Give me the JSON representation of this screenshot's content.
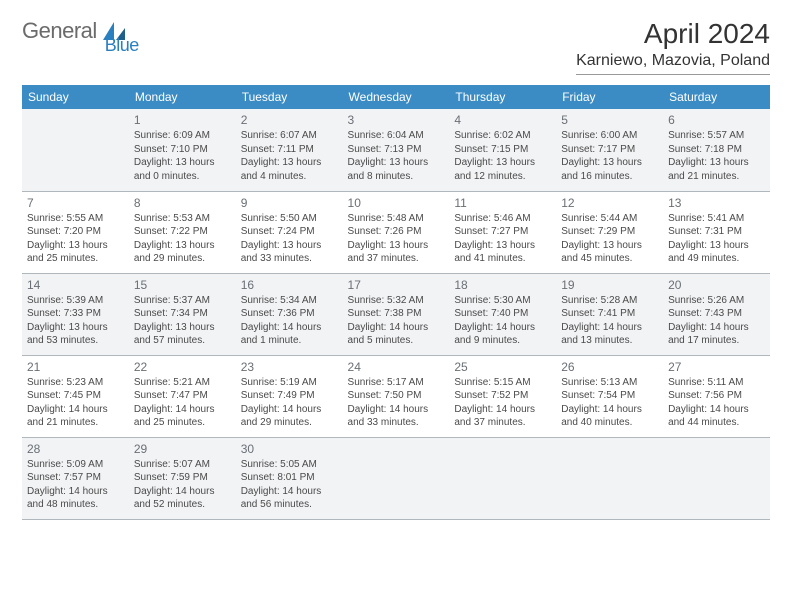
{
  "logo": {
    "part1": "General",
    "part2": "Blue"
  },
  "title": "April 2024",
  "location": "Karniewo, Mazovia, Poland",
  "colors": {
    "header_bg": "#3b8bc4",
    "header_fg": "#ffffff",
    "shade_bg": "#f2f3f5",
    "border": "#b0b7bd",
    "logo_gray": "#6b6b6b",
    "logo_blue": "#2a7fbf"
  },
  "day_headers": [
    "Sunday",
    "Monday",
    "Tuesday",
    "Wednesday",
    "Thursday",
    "Friday",
    "Saturday"
  ],
  "weeks": [
    [
      {
        "num": "",
        "lines": []
      },
      {
        "num": "1",
        "lines": [
          "Sunrise: 6:09 AM",
          "Sunset: 7:10 PM",
          "Daylight: 13 hours",
          "and 0 minutes."
        ]
      },
      {
        "num": "2",
        "lines": [
          "Sunrise: 6:07 AM",
          "Sunset: 7:11 PM",
          "Daylight: 13 hours",
          "and 4 minutes."
        ]
      },
      {
        "num": "3",
        "lines": [
          "Sunrise: 6:04 AM",
          "Sunset: 7:13 PM",
          "Daylight: 13 hours",
          "and 8 minutes."
        ]
      },
      {
        "num": "4",
        "lines": [
          "Sunrise: 6:02 AM",
          "Sunset: 7:15 PM",
          "Daylight: 13 hours",
          "and 12 minutes."
        ]
      },
      {
        "num": "5",
        "lines": [
          "Sunrise: 6:00 AM",
          "Sunset: 7:17 PM",
          "Daylight: 13 hours",
          "and 16 minutes."
        ]
      },
      {
        "num": "6",
        "lines": [
          "Sunrise: 5:57 AM",
          "Sunset: 7:18 PM",
          "Daylight: 13 hours",
          "and 21 minutes."
        ]
      }
    ],
    [
      {
        "num": "7",
        "lines": [
          "Sunrise: 5:55 AM",
          "Sunset: 7:20 PM",
          "Daylight: 13 hours",
          "and 25 minutes."
        ]
      },
      {
        "num": "8",
        "lines": [
          "Sunrise: 5:53 AM",
          "Sunset: 7:22 PM",
          "Daylight: 13 hours",
          "and 29 minutes."
        ]
      },
      {
        "num": "9",
        "lines": [
          "Sunrise: 5:50 AM",
          "Sunset: 7:24 PM",
          "Daylight: 13 hours",
          "and 33 minutes."
        ]
      },
      {
        "num": "10",
        "lines": [
          "Sunrise: 5:48 AM",
          "Sunset: 7:26 PM",
          "Daylight: 13 hours",
          "and 37 minutes."
        ]
      },
      {
        "num": "11",
        "lines": [
          "Sunrise: 5:46 AM",
          "Sunset: 7:27 PM",
          "Daylight: 13 hours",
          "and 41 minutes."
        ]
      },
      {
        "num": "12",
        "lines": [
          "Sunrise: 5:44 AM",
          "Sunset: 7:29 PM",
          "Daylight: 13 hours",
          "and 45 minutes."
        ]
      },
      {
        "num": "13",
        "lines": [
          "Sunrise: 5:41 AM",
          "Sunset: 7:31 PM",
          "Daylight: 13 hours",
          "and 49 minutes."
        ]
      }
    ],
    [
      {
        "num": "14",
        "lines": [
          "Sunrise: 5:39 AM",
          "Sunset: 7:33 PM",
          "Daylight: 13 hours",
          "and 53 minutes."
        ]
      },
      {
        "num": "15",
        "lines": [
          "Sunrise: 5:37 AM",
          "Sunset: 7:34 PM",
          "Daylight: 13 hours",
          "and 57 minutes."
        ]
      },
      {
        "num": "16",
        "lines": [
          "Sunrise: 5:34 AM",
          "Sunset: 7:36 PM",
          "Daylight: 14 hours",
          "and 1 minute."
        ]
      },
      {
        "num": "17",
        "lines": [
          "Sunrise: 5:32 AM",
          "Sunset: 7:38 PM",
          "Daylight: 14 hours",
          "and 5 minutes."
        ]
      },
      {
        "num": "18",
        "lines": [
          "Sunrise: 5:30 AM",
          "Sunset: 7:40 PM",
          "Daylight: 14 hours",
          "and 9 minutes."
        ]
      },
      {
        "num": "19",
        "lines": [
          "Sunrise: 5:28 AM",
          "Sunset: 7:41 PM",
          "Daylight: 14 hours",
          "and 13 minutes."
        ]
      },
      {
        "num": "20",
        "lines": [
          "Sunrise: 5:26 AM",
          "Sunset: 7:43 PM",
          "Daylight: 14 hours",
          "and 17 minutes."
        ]
      }
    ],
    [
      {
        "num": "21",
        "lines": [
          "Sunrise: 5:23 AM",
          "Sunset: 7:45 PM",
          "Daylight: 14 hours",
          "and 21 minutes."
        ]
      },
      {
        "num": "22",
        "lines": [
          "Sunrise: 5:21 AM",
          "Sunset: 7:47 PM",
          "Daylight: 14 hours",
          "and 25 minutes."
        ]
      },
      {
        "num": "23",
        "lines": [
          "Sunrise: 5:19 AM",
          "Sunset: 7:49 PM",
          "Daylight: 14 hours",
          "and 29 minutes."
        ]
      },
      {
        "num": "24",
        "lines": [
          "Sunrise: 5:17 AM",
          "Sunset: 7:50 PM",
          "Daylight: 14 hours",
          "and 33 minutes."
        ]
      },
      {
        "num": "25",
        "lines": [
          "Sunrise: 5:15 AM",
          "Sunset: 7:52 PM",
          "Daylight: 14 hours",
          "and 37 minutes."
        ]
      },
      {
        "num": "26",
        "lines": [
          "Sunrise: 5:13 AM",
          "Sunset: 7:54 PM",
          "Daylight: 14 hours",
          "and 40 minutes."
        ]
      },
      {
        "num": "27",
        "lines": [
          "Sunrise: 5:11 AM",
          "Sunset: 7:56 PM",
          "Daylight: 14 hours",
          "and 44 minutes."
        ]
      }
    ],
    [
      {
        "num": "28",
        "lines": [
          "Sunrise: 5:09 AM",
          "Sunset: 7:57 PM",
          "Daylight: 14 hours",
          "and 48 minutes."
        ]
      },
      {
        "num": "29",
        "lines": [
          "Sunrise: 5:07 AM",
          "Sunset: 7:59 PM",
          "Daylight: 14 hours",
          "and 52 minutes."
        ]
      },
      {
        "num": "30",
        "lines": [
          "Sunrise: 5:05 AM",
          "Sunset: 8:01 PM",
          "Daylight: 14 hours",
          "and 56 minutes."
        ]
      },
      {
        "num": "",
        "lines": []
      },
      {
        "num": "",
        "lines": []
      },
      {
        "num": "",
        "lines": []
      },
      {
        "num": "",
        "lines": []
      }
    ]
  ]
}
